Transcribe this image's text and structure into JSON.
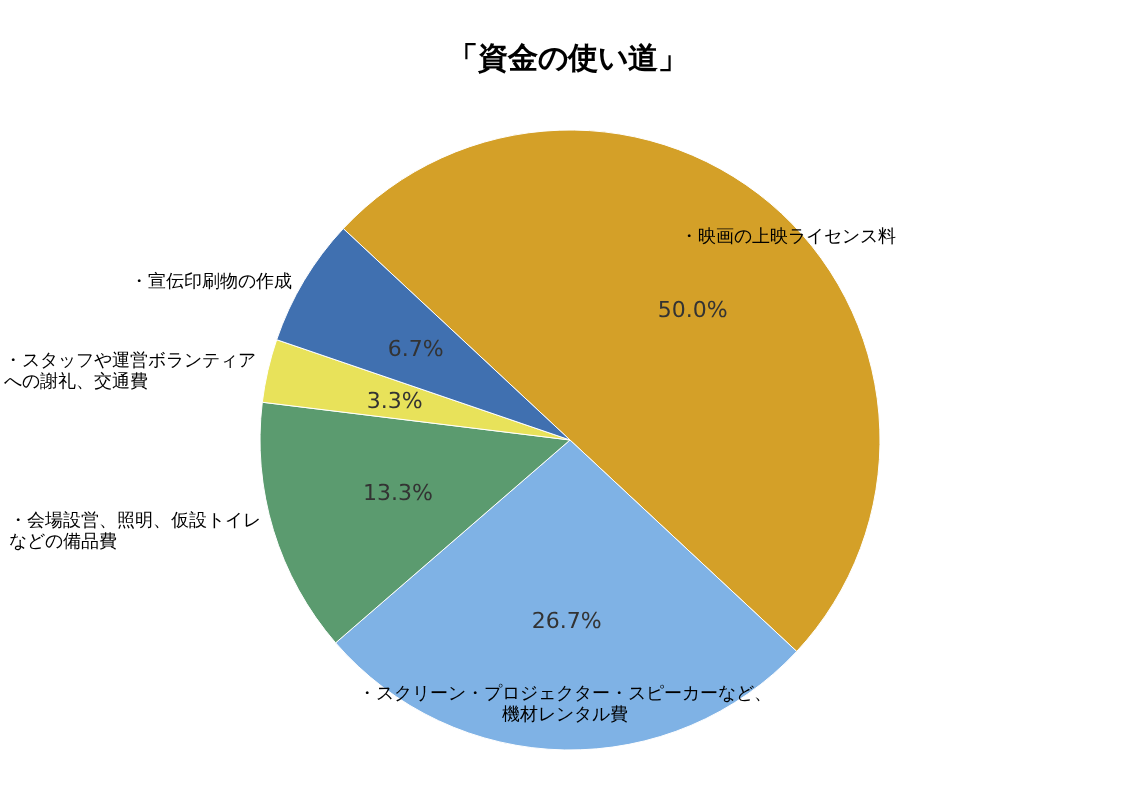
{
  "chart_data": {
    "type": "pie",
    "title": "「資金の使い道」",
    "categories": [
      "・映画の上映ライセンス料",
      "・スクリーン・プロジェクター・スピーカーなど、機材レンタル費",
      "・会場設営、照明、仮設トイレなどの備品費",
      "・スタッフや運営ボランティアへの謝礼、交通費",
      "・宣伝印刷物の作成"
    ],
    "values": [
      50,
      26.7,
      13.3,
      3.3,
      6.7
    ],
    "value_labels": [
      "50.0%",
      "26.7%",
      "13.3%",
      "3.3%",
      "6.7%"
    ],
    "colors": [
      "#d4a028",
      "#7fb2e5",
      "#5b9b6f",
      "#e8e25a",
      "#4070b0"
    ]
  }
}
